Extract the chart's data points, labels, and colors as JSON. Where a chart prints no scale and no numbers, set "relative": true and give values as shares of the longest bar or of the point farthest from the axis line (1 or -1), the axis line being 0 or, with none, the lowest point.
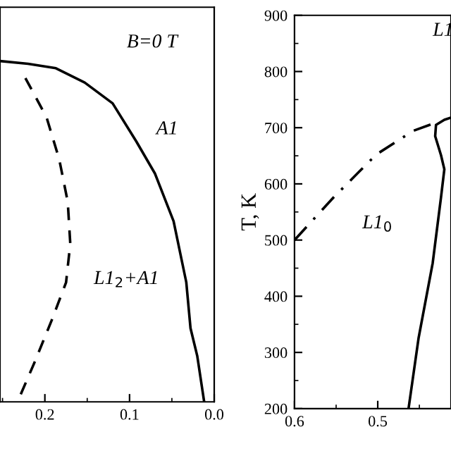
{
  "chart_data": [
    {
      "type": "line",
      "xlim": [
        0.253,
        0.0
      ],
      "relative": true,
      "tick_labels": "x",
      "xticks": [
        0.2,
        0.1,
        {
          "value": 0.0,
          "label": "0.0"
        },
        {
          "value": 0.25,
          "label": null
        },
        {
          "value": 0.15,
          "label": null
        },
        {
          "value": 0.05,
          "label": null
        }
      ],
      "series": [
        {
          "color": "#000000",
          "line_style": "solid",
          "x": [
            0.253,
            0.22,
            0.187,
            0.153,
            0.12,
            0.092,
            0.07,
            0.048,
            0.033,
            0.028,
            0.02,
            0.012
          ],
          "values": [
            1.0,
            0.992,
            0.979,
            0.937,
            0.876,
            0.764,
            0.67,
            0.53,
            0.351,
            0.216,
            0.134,
            0.002
          ]
        },
        {
          "color": "#000000",
          "line_style": "dashed",
          "x": [
            0.223,
            0.198,
            0.183,
            0.173,
            0.17,
            0.175,
            0.192,
            0.212,
            0.232
          ],
          "values": [
            0.95,
            0.835,
            0.711,
            0.587,
            0.464,
            0.35,
            0.239,
            0.117,
            0.002
          ]
        }
      ],
      "annotations": [
        "B=0 T",
        "A1",
        "L1$_{2}$+A1"
      ]
    },
    {
      "type": "line",
      "xlim": [
        0.6,
        0.412
      ],
      "ylim": [
        200,
        900
      ],
      "ylabel": "T, K",
      "xticks": [
        0.6,
        0.5,
        {
          "value": 0.55,
          "label": null
        },
        {
          "value": 0.45,
          "label": null
        }
      ],
      "yticks": [
        200,
        300,
        400,
        500,
        600,
        700,
        800,
        900,
        {
          "value": 250,
          "label": null
        },
        {
          "value": 350,
          "label": null
        },
        {
          "value": 450,
          "label": null
        },
        {
          "value": 550,
          "label": null
        },
        {
          "value": 650,
          "label": null
        },
        {
          "value": 750,
          "label": null
        },
        {
          "value": 850,
          "label": null
        }
      ],
      "series": [
        {
          "color": "#000000",
          "line_style": "dashdot",
          "x": [
            0.6,
            0.553,
            0.502,
            0.458,
            0.434
          ],
          "values": [
            500,
            576,
            652,
            694,
            707
          ]
        },
        {
          "color": "#000000",
          "line_style": "solid",
          "x": [
            0.463,
            0.451,
            0.434,
            0.424,
            0.42,
            0.424,
            0.431,
            0.43,
            0.42,
            0.412
          ],
          "values": [
            200,
            325,
            459,
            576,
            626,
            651,
            685,
            705,
            714,
            718
          ]
        }
      ],
      "annotations": [
        "L1$_{0}$",
        "L1"
      ]
    }
  ]
}
